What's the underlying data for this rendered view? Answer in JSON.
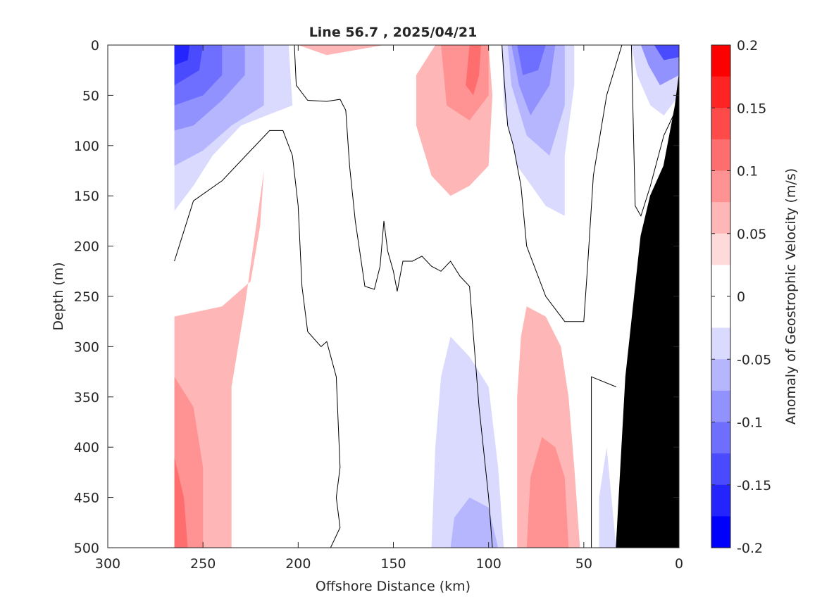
{
  "chart_data": {
    "type": "heatmap",
    "subtype": "filled-contour section",
    "title": "Line 56.7 , 2025/04/21",
    "xlabel": "Offshore Distance (km)",
    "ylabel": "Depth (m)",
    "colorbar_label": "Anomaly of Geostrophic Velocity (m/s)",
    "xlim": [
      300,
      0
    ],
    "x_direction": "reversed",
    "ylim": [
      0,
      500
    ],
    "y_direction": "depth increasing downward",
    "x_ticks": [
      "300",
      "250",
      "200",
      "150",
      "100",
      "50",
      "0"
    ],
    "y_ticks": [
      "0",
      "50",
      "100",
      "150",
      "200",
      "250",
      "300",
      "350",
      "400",
      "450",
      "500"
    ],
    "colorbar_ticks": [
      "0.2",
      "0.15",
      "0.1",
      "0.05",
      "0",
      "-0.05",
      "-0.1",
      "-0.15",
      "-0.2"
    ],
    "color_levels": [
      {
        "range": [
          0.175,
          0.2
        ],
        "color": "#ff0000"
      },
      {
        "range": [
          0.15,
          0.175
        ],
        "color": "#ff2424"
      },
      {
        "range": [
          0.125,
          0.15
        ],
        "color": "#ff4a4a"
      },
      {
        "range": [
          0.1,
          0.125
        ],
        "color": "#ff6e6e"
      },
      {
        "range": [
          0.075,
          0.1
        ],
        "color": "#ff9292"
      },
      {
        "range": [
          0.05,
          0.075
        ],
        "color": "#ffb6b6"
      },
      {
        "range": [
          0.025,
          0.05
        ],
        "color": "#ffdada"
      },
      {
        "range": [
          0,
          0.025
        ],
        "color": "#ffffff"
      },
      {
        "range": [
          -0.025,
          0
        ],
        "color": "#ffffff"
      },
      {
        "range": [
          -0.05,
          -0.025
        ],
        "color": "#dadaff"
      },
      {
        "range": [
          -0.075,
          -0.05
        ],
        "color": "#b6b6ff"
      },
      {
        "range": [
          -0.1,
          -0.075
        ],
        "color": "#9292ff"
      },
      {
        "range": [
          -0.125,
          -0.1
        ],
        "color": "#6e6eff"
      },
      {
        "range": [
          -0.15,
          -0.125
        ],
        "color": "#4a4aff"
      },
      {
        "range": [
          -0.175,
          -0.15
        ],
        "color": "#2424ff"
      },
      {
        "range": [
          -0.2,
          -0.175
        ],
        "color": "#0000ff"
      }
    ],
    "data_extent_km": [
      265,
      0
    ],
    "bathymetry_fill": "#000000",
    "bathymetry_points": [
      [
        33,
        500
      ],
      [
        28,
        330
      ],
      [
        20,
        190
      ],
      [
        15,
        150
      ],
      [
        8,
        120
      ],
      [
        2,
        60
      ],
      [
        0,
        30
      ],
      [
        0,
        500
      ]
    ],
    "zero_contours": [
      [
        [
          265,
          215
        ],
        [
          255,
          155
        ],
        [
          240,
          135
        ],
        [
          225,
          105
        ],
        [
          215,
          85
        ],
        [
          208,
          85
        ],
        [
          203,
          110
        ],
        [
          200,
          160
        ],
        [
          198,
          240
        ],
        [
          195,
          285
        ],
        [
          188,
          300
        ],
        [
          185,
          295
        ],
        [
          180,
          330
        ],
        [
          178,
          420
        ],
        [
          180,
          450
        ],
        [
          178,
          480
        ],
        [
          183,
          500
        ]
      ],
      [
        [
          202,
          0
        ],
        [
          201,
          40
        ],
        [
          195,
          55
        ],
        [
          185,
          56
        ],
        [
          178,
          54
        ],
        [
          175,
          65
        ],
        [
          173,
          120
        ],
        [
          170,
          175
        ],
        [
          165,
          240
        ],
        [
          160,
          243
        ],
        [
          157,
          220
        ],
        [
          155,
          175
        ],
        [
          153,
          205
        ],
        [
          150,
          225
        ],
        [
          148,
          245
        ],
        [
          145,
          215
        ],
        [
          140,
          215
        ],
        [
          135,
          210
        ],
        [
          130,
          220
        ],
        [
          125,
          225
        ],
        [
          120,
          215
        ],
        [
          115,
          230
        ],
        [
          110,
          240
        ],
        [
          105,
          360
        ],
        [
          100,
          450
        ],
        [
          98,
          500
        ]
      ],
      [
        [
          93,
          0
        ],
        [
          92,
          30
        ],
        [
          90,
          80
        ],
        [
          87,
          100
        ],
        [
          83,
          140
        ],
        [
          80,
          200
        ],
        [
          70,
          250
        ],
        [
          60,
          275
        ],
        [
          50,
          275
        ],
        [
          48,
          220
        ],
        [
          45,
          130
        ],
        [
          38,
          50
        ],
        [
          30,
          0
        ]
      ],
      [
        [
          25,
          0
        ],
        [
          24,
          80
        ],
        [
          23,
          160
        ],
        [
          20,
          170
        ],
        [
          15,
          140
        ],
        [
          8,
          90
        ],
        [
          3,
          70
        ]
      ],
      [
        [
          46,
          500
        ],
        [
          46,
          330
        ],
        [
          33,
          340
        ]
      ]
    ],
    "anomaly_regions": [
      {
        "sign": "negative",
        "magnitude": -0.05,
        "x_km": [
          265,
          205
        ],
        "depth_m": [
          0,
          165
        ],
        "points": [
          [
            265,
            0
          ],
          [
            205,
            0
          ],
          [
            203,
            60
          ],
          [
            230,
            80
          ],
          [
            245,
            110
          ],
          [
            255,
            140
          ],
          [
            265,
            165
          ]
        ]
      },
      {
        "sign": "negative",
        "magnitude": -0.075,
        "x_km": [
          265,
          220
        ],
        "depth_m": [
          0,
          120
        ],
        "points": [
          [
            265,
            0
          ],
          [
            218,
            0
          ],
          [
            218,
            60
          ],
          [
            235,
            80
          ],
          [
            250,
            105
          ],
          [
            265,
            120
          ]
        ]
      },
      {
        "sign": "negative",
        "magnitude": -0.1,
        "x_km": [
          265,
          228
        ],
        "depth_m": [
          0,
          85
        ],
        "points": [
          [
            265,
            0
          ],
          [
            228,
            0
          ],
          [
            228,
            30
          ],
          [
            240,
            55
          ],
          [
            255,
            80
          ],
          [
            265,
            85
          ]
        ]
      },
      {
        "sign": "negative",
        "magnitude": -0.125,
        "x_km": [
          265,
          240
        ],
        "depth_m": [
          0,
          60
        ],
        "points": [
          [
            265,
            0
          ],
          [
            240,
            0
          ],
          [
            240,
            30
          ],
          [
            250,
            50
          ],
          [
            265,
            60
          ]
        ]
      },
      {
        "sign": "negative",
        "magnitude": -0.15,
        "x_km": [
          265,
          250
        ],
        "depth_m": [
          0,
          40
        ],
        "points": [
          [
            265,
            0
          ],
          [
            250,
            0
          ],
          [
            252,
            25
          ],
          [
            265,
            40
          ]
        ]
      },
      {
        "sign": "negative",
        "magnitude": -0.175,
        "x_km": [
          265,
          257
        ],
        "depth_m": [
          0,
          20
        ],
        "points": [
          [
            265,
            0
          ],
          [
            257,
            0
          ],
          [
            258,
            15
          ],
          [
            265,
            20
          ]
        ]
      },
      {
        "sign": "positive",
        "magnitude": 0.05,
        "x_km": [
          218,
          265
        ],
        "depth_m": [
          125,
          500
        ],
        "points": [
          [
            218,
            125
          ],
          [
            220,
            180
          ],
          [
            225,
            235
          ],
          [
            240,
            260
          ],
          [
            265,
            270
          ],
          [
            265,
            500
          ],
          [
            235,
            500
          ],
          [
            235,
            340
          ],
          [
            228,
            260
          ]
        ]
      },
      {
        "sign": "positive",
        "magnitude": 0.075,
        "x_km": [
          250,
          265
        ],
        "depth_m": [
          330,
          500
        ],
        "points": [
          [
            265,
            330
          ],
          [
            255,
            360
          ],
          [
            250,
            420
          ],
          [
            250,
            500
          ],
          [
            265,
            500
          ]
        ]
      },
      {
        "sign": "positive",
        "magnitude": 0.1,
        "x_km": [
          258,
          265
        ],
        "depth_m": [
          410,
          500
        ],
        "points": [
          [
            265,
            410
          ],
          [
            260,
            450
          ],
          [
            258,
            500
          ],
          [
            265,
            500
          ]
        ]
      },
      {
        "sign": "positive",
        "magnitude": 0.05,
        "x_km": [
          100,
          140
        ],
        "depth_m": [
          0,
          150
        ],
        "points": [
          [
            128,
            0
          ],
          [
            100,
            0
          ],
          [
            98,
            50
          ],
          [
            100,
            120
          ],
          [
            110,
            140
          ],
          [
            120,
            150
          ],
          [
            130,
            130
          ],
          [
            138,
            80
          ],
          [
            138,
            30
          ]
        ]
      },
      {
        "sign": "positive",
        "magnitude": 0.075,
        "x_km": [
          100,
          125
        ],
        "depth_m": [
          0,
          75
        ],
        "points": [
          [
            125,
            0
          ],
          [
            100,
            0
          ],
          [
            100,
            50
          ],
          [
            110,
            75
          ],
          [
            122,
            60
          ]
        ]
      },
      {
        "sign": "positive",
        "magnitude": 0.1,
        "x_km": [
          104,
          112
        ],
        "depth_m": [
          0,
          50
        ],
        "points": [
          [
            110,
            0
          ],
          [
            104,
            0
          ],
          [
            105,
            30
          ],
          [
            108,
            50
          ],
          [
            112,
            40
          ]
        ]
      },
      {
        "sign": "positive",
        "magnitude": 0.05,
        "x_km": [
          150,
          200
        ],
        "depth_m": [
          0,
          10
        ],
        "points": [
          [
            200,
            0
          ],
          [
            155,
            0
          ],
          [
            170,
            5
          ],
          [
            185,
            10
          ]
        ]
      },
      {
        "sign": "negative",
        "magnitude": -0.05,
        "x_km": [
          55,
          93
        ],
        "depth_m": [
          0,
          170
        ],
        "points": [
          [
            93,
            0
          ],
          [
            55,
            0
          ],
          [
            55,
            40
          ],
          [
            60,
            110
          ],
          [
            60,
            170
          ],
          [
            70,
            160
          ],
          [
            85,
            120
          ],
          [
            92,
            60
          ]
        ]
      },
      {
        "sign": "negative",
        "magnitude": -0.075,
        "x_km": [
          60,
          90
        ],
        "depth_m": [
          0,
          110
        ],
        "points": [
          [
            90,
            0
          ],
          [
            60,
            0
          ],
          [
            60,
            60
          ],
          [
            68,
            110
          ],
          [
            80,
            90
          ],
          [
            88,
            40
          ]
        ]
      },
      {
        "sign": "negative",
        "magnitude": -0.1,
        "x_km": [
          65,
          88
        ],
        "depth_m": [
          0,
          70
        ],
        "points": [
          [
            88,
            0
          ],
          [
            65,
            0
          ],
          [
            68,
            40
          ],
          [
            78,
            70
          ],
          [
            84,
            40
          ]
        ]
      },
      {
        "sign": "negative",
        "magnitude": -0.125,
        "x_km": [
          70,
          85
        ],
        "depth_m": [
          0,
          40
        ],
        "points": [
          [
            85,
            0
          ],
          [
            70,
            0
          ],
          [
            74,
            25
          ],
          [
            82,
            30
          ]
        ]
      },
      {
        "sign": "negative",
        "magnitude": -0.05,
        "x_km": [
          92,
          130
        ],
        "depth_m": [
          290,
          500
        ],
        "points": [
          [
            120,
            290
          ],
          [
            110,
            310
          ],
          [
            100,
            340
          ],
          [
            95,
            420
          ],
          [
            92,
            500
          ],
          [
            130,
            500
          ],
          [
            128,
            400
          ],
          [
            125,
            330
          ]
        ]
      },
      {
        "sign": "negative",
        "magnitude": -0.075,
        "x_km": [
          95,
          120
        ],
        "depth_m": [
          450,
          500
        ],
        "points": [
          [
            110,
            450
          ],
          [
            118,
            470
          ],
          [
            120,
            500
          ],
          [
            95,
            500
          ],
          [
            100,
            460
          ]
        ]
      },
      {
        "sign": "positive",
        "magnitude": 0.05,
        "x_km": [
          50,
          85
        ],
        "depth_m": [
          260,
          500
        ],
        "points": [
          [
            80,
            260
          ],
          [
            70,
            270
          ],
          [
            62,
            300
          ],
          [
            58,
            350
          ],
          [
            55,
            420
          ],
          [
            52,
            500
          ],
          [
            85,
            500
          ],
          [
            85,
            350
          ],
          [
            83,
            290
          ]
        ]
      },
      {
        "sign": "positive",
        "magnitude": 0.075,
        "x_km": [
          58,
          80
        ],
        "depth_m": [
          390,
          500
        ],
        "points": [
          [
            72,
            390
          ],
          [
            65,
            400
          ],
          [
            60,
            430
          ],
          [
            58,
            500
          ],
          [
            80,
            500
          ],
          [
            78,
            430
          ]
        ]
      },
      {
        "sign": "negative",
        "magnitude": -0.05,
        "x_km": [
          0,
          40
        ],
        "depth_m": [
          0,
          70
        ],
        "points": [
          [
            25,
            0
          ],
          [
            0,
            0
          ],
          [
            0,
            50
          ],
          [
            8,
            70
          ],
          [
            15,
            60
          ],
          [
            22,
            30
          ]
        ]
      },
      {
        "sign": "negative",
        "magnitude": -0.1,
        "x_km": [
          0,
          20
        ],
        "depth_m": [
          0,
          40
        ],
        "points": [
          [
            20,
            0
          ],
          [
            0,
            0
          ],
          [
            0,
            30
          ],
          [
            10,
            40
          ],
          [
            16,
            20
          ]
        ]
      },
      {
        "sign": "negative",
        "magnitude": -0.15,
        "x_km": [
          0,
          13
        ],
        "depth_m": [
          0,
          15
        ],
        "points": [
          [
            13,
            0
          ],
          [
            0,
            0
          ],
          [
            0,
            12
          ],
          [
            8,
            15
          ]
        ]
      },
      {
        "sign": "negative",
        "magnitude": -0.05,
        "x_km": [
          33,
          42
        ],
        "depth_m": [
          400,
          500
        ],
        "points": [
          [
            38,
            400
          ],
          [
            42,
            450
          ],
          [
            42,
            500
          ],
          [
            33,
            500
          ]
        ]
      }
    ]
  }
}
